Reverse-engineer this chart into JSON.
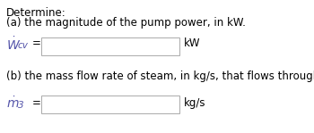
{
  "title_line1": "Determine:",
  "title_line2": "(a) the magnitude of the pump power, in kW.",
  "title_line3": "(b) the mass flow rate of steam, in kg/s, that flows through the turbine.",
  "label_a_unit": "kW",
  "label_b_unit": "kg/s",
  "background_color": "#ffffff",
  "text_color": "#000000",
  "italic_color": "#5555aa",
  "font_size_body": 8.5,
  "font_size_math": 10.0,
  "font_size_sub": 7.5
}
